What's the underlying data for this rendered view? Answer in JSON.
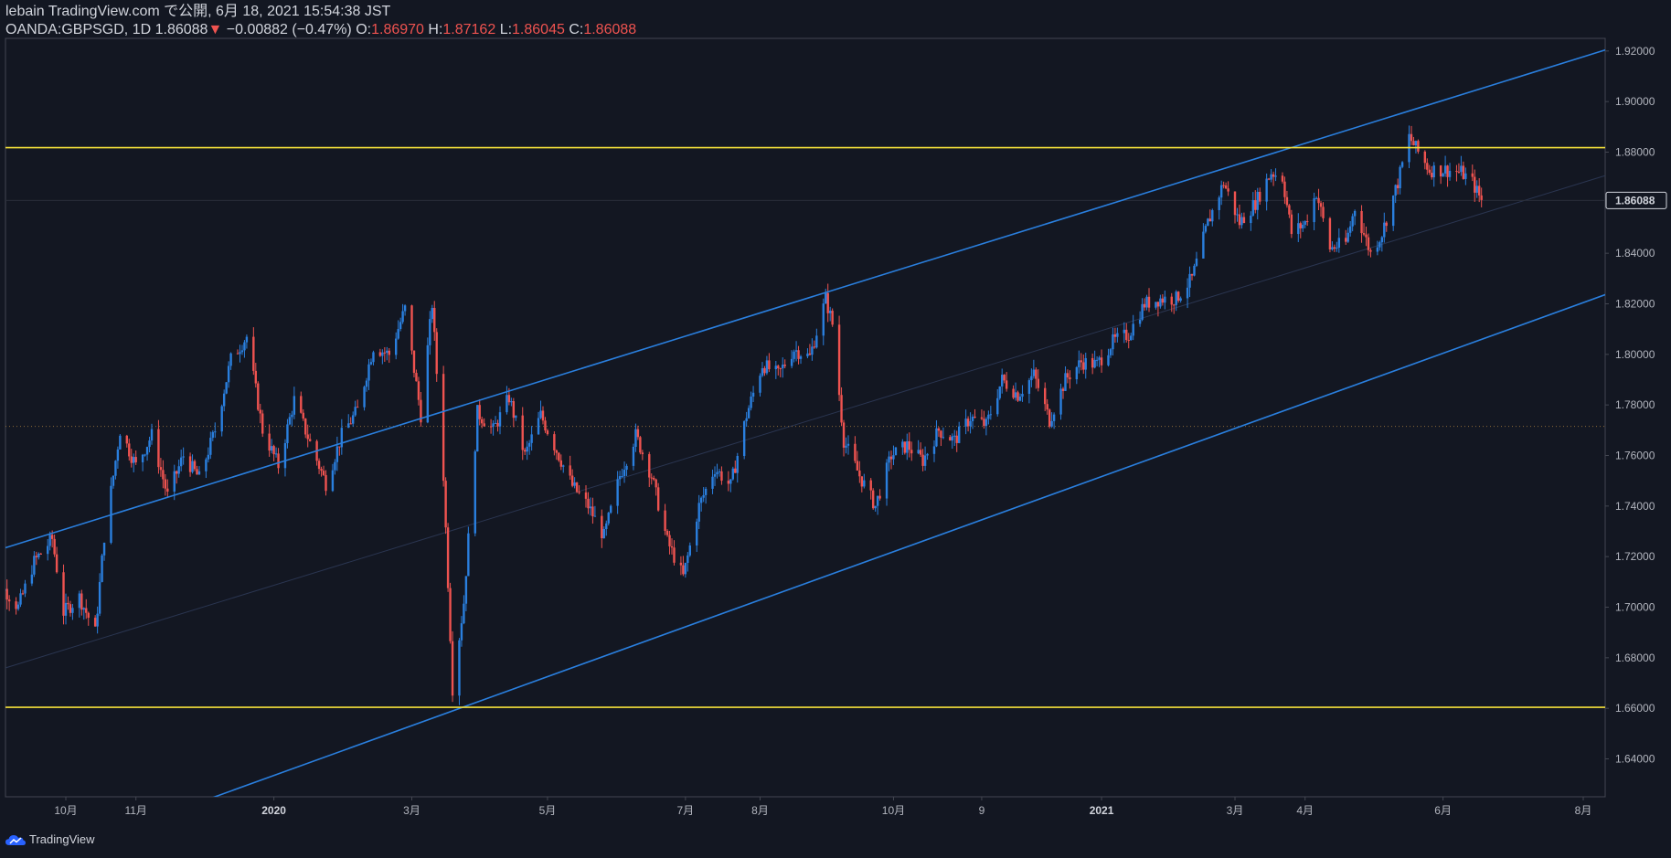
{
  "header": {
    "line1": "lebain TradingView.com で公開, 6月 18, 2021 15:54:38 JST",
    "symbol": "OANDA:GBPSGD, 1D",
    "last": "1.86088",
    "arrow": "▼",
    "change": "−0.00882 (−0.47%)",
    "o_label": "O:",
    "o": "1.86970",
    "h_label": "H:",
    "h": "1.87162",
    "l_label": "L:",
    "l": "1.86045",
    "c_label": "C:",
    "c": "1.86088"
  },
  "footer": {
    "brand": "TradingView"
  },
  "colors": {
    "background": "#131722",
    "up": "#2a7fde",
    "down": "#ef5350",
    "channel": "#2a7fde",
    "horizontal": "#f5e13a",
    "grid": "#2a2e39"
  },
  "chart_data": {
    "type": "candlestick",
    "title": "",
    "xlabel": "",
    "ylabel": "",
    "ylim": [
      1.625,
      1.925
    ],
    "y_ticks": [
      "1.64000",
      "1.66000",
      "1.68000",
      "1.70000",
      "1.72000",
      "1.74000",
      "1.76000",
      "1.78000",
      "1.80000",
      "1.82000",
      "1.84000",
      "1.86000",
      "1.88000",
      "1.90000",
      "1.92000"
    ],
    "last_price_label": "1.86088",
    "x_ticks": [
      {
        "label": "10月",
        "date": "2019-10-01",
        "bold": false
      },
      {
        "label": "11月",
        "date": "2019-11-01",
        "bold": false
      },
      {
        "label": "2020",
        "date": "2020-01-01",
        "bold": true
      },
      {
        "label": "3月",
        "date": "2020-03-02",
        "bold": false
      },
      {
        "label": "5月",
        "date": "2020-05-01",
        "bold": false
      },
      {
        "label": "7月",
        "date": "2020-07-01",
        "bold": false
      },
      {
        "label": "8月",
        "date": "2020-08-03",
        "bold": false
      },
      {
        "label": "10月",
        "date": "2020-10-01",
        "bold": false
      },
      {
        "label": "9",
        "date": "2020-11-09",
        "bold": false
      },
      {
        "label": "2021",
        "date": "2021-01-01",
        "bold": true
      },
      {
        "label": "3月",
        "date": "2021-03-01",
        "bold": false
      },
      {
        "label": "4月",
        "date": "2021-04-01",
        "bold": false
      },
      {
        "label": "6月",
        "date": "2021-06-01",
        "bold": false
      },
      {
        "label": "8月",
        "date": "2021-08-02",
        "bold": false
      }
    ],
    "horizontal_levels": [
      1.8818,
      1.6604
    ],
    "channel_upper": [
      {
        "date": "2019-08-27",
        "price": 1.7212
      },
      {
        "date": "2021-08-12",
        "price": 1.9205
      }
    ],
    "channel_lower": [
      {
        "date": "2019-08-27",
        "price": 1.5924
      },
      {
        "date": "2021-08-12",
        "price": 1.8237
      }
    ],
    "channel_mid": [
      {
        "date": "2019-08-27",
        "price": 1.6737
      },
      {
        "date": "2021-08-12",
        "price": 1.8708
      }
    ],
    "dotted_level": 1.7715,
    "price_path": [
      {
        "date": "2019-08-27",
        "price": 1.695
      },
      {
        "date": "2019-09-03",
        "price": 1.708
      },
      {
        "date": "2019-09-10",
        "price": 1.7
      },
      {
        "date": "2019-09-17",
        "price": 1.718
      },
      {
        "date": "2019-09-25",
        "price": 1.727
      },
      {
        "date": "2019-09-30",
        "price": 1.698
      },
      {
        "date": "2019-10-07",
        "price": 1.704
      },
      {
        "date": "2019-10-14",
        "price": 1.69
      },
      {
        "date": "2019-10-18",
        "price": 1.728
      },
      {
        "date": "2019-10-25",
        "price": 1.77
      },
      {
        "date": "2019-11-01",
        "price": 1.756
      },
      {
        "date": "2019-11-08",
        "price": 1.768
      },
      {
        "date": "2019-11-15",
        "price": 1.744
      },
      {
        "date": "2019-11-22",
        "price": 1.76
      },
      {
        "date": "2019-11-29",
        "price": 1.751
      },
      {
        "date": "2019-12-06",
        "price": 1.77
      },
      {
        "date": "2019-12-13",
        "price": 1.798
      },
      {
        "date": "2019-12-20",
        "price": 1.807
      },
      {
        "date": "2019-12-27",
        "price": 1.77
      },
      {
        "date": "2020-01-03",
        "price": 1.756
      },
      {
        "date": "2020-01-10",
        "price": 1.782
      },
      {
        "date": "2020-01-17",
        "price": 1.765
      },
      {
        "date": "2020-01-24",
        "price": 1.749
      },
      {
        "date": "2020-01-31",
        "price": 1.768
      },
      {
        "date": "2020-02-07",
        "price": 1.778
      },
      {
        "date": "2020-02-14",
        "price": 1.803
      },
      {
        "date": "2020-02-21",
        "price": 1.8
      },
      {
        "date": "2020-02-28",
        "price": 1.818
      },
      {
        "date": "2020-03-06",
        "price": 1.776
      },
      {
        "date": "2020-03-11",
        "price": 1.82
      },
      {
        "date": "2020-03-16",
        "price": 1.752
      },
      {
        "date": "2020-03-20",
        "price": 1.668
      },
      {
        "date": "2020-03-25",
        "price": 1.702
      },
      {
        "date": "2020-03-31",
        "price": 1.777
      },
      {
        "date": "2020-04-07",
        "price": 1.77
      },
      {
        "date": "2020-04-14",
        "price": 1.783
      },
      {
        "date": "2020-04-21",
        "price": 1.76
      },
      {
        "date": "2020-04-28",
        "price": 1.776
      },
      {
        "date": "2020-05-05",
        "price": 1.762
      },
      {
        "date": "2020-05-12",
        "price": 1.748
      },
      {
        "date": "2020-05-19",
        "price": 1.74
      },
      {
        "date": "2020-05-26",
        "price": 1.728
      },
      {
        "date": "2020-06-02",
        "price": 1.752
      },
      {
        "date": "2020-06-09",
        "price": 1.768
      },
      {
        "date": "2020-06-16",
        "price": 1.752
      },
      {
        "date": "2020-06-23",
        "price": 1.726
      },
      {
        "date": "2020-06-30",
        "price": 1.712
      },
      {
        "date": "2020-07-07",
        "price": 1.74
      },
      {
        "date": "2020-07-14",
        "price": 1.755
      },
      {
        "date": "2020-07-21",
        "price": 1.748
      },
      {
        "date": "2020-07-28",
        "price": 1.776
      },
      {
        "date": "2020-08-04",
        "price": 1.796
      },
      {
        "date": "2020-08-11",
        "price": 1.792
      },
      {
        "date": "2020-08-18",
        "price": 1.802
      },
      {
        "date": "2020-08-25",
        "price": 1.799
      },
      {
        "date": "2020-09-01",
        "price": 1.822
      },
      {
        "date": "2020-09-04",
        "price": 1.812
      },
      {
        "date": "2020-09-09",
        "price": 1.766
      },
      {
        "date": "2020-09-16",
        "price": 1.752
      },
      {
        "date": "2020-09-23",
        "price": 1.74
      },
      {
        "date": "2020-09-30",
        "price": 1.76
      },
      {
        "date": "2020-10-07",
        "price": 1.764
      },
      {
        "date": "2020-10-14",
        "price": 1.758
      },
      {
        "date": "2020-10-21",
        "price": 1.77
      },
      {
        "date": "2020-10-28",
        "price": 1.766
      },
      {
        "date": "2020-11-04",
        "price": 1.775
      },
      {
        "date": "2020-11-11",
        "price": 1.772
      },
      {
        "date": "2020-11-18",
        "price": 1.79
      },
      {
        "date": "2020-11-25",
        "price": 1.784
      },
      {
        "date": "2020-12-02",
        "price": 1.792
      },
      {
        "date": "2020-12-09",
        "price": 1.774
      },
      {
        "date": "2020-12-16",
        "price": 1.79
      },
      {
        "date": "2020-12-23",
        "price": 1.797
      },
      {
        "date": "2020-12-30",
        "price": 1.796
      },
      {
        "date": "2021-01-06",
        "price": 1.805
      },
      {
        "date": "2021-01-13",
        "price": 1.808
      },
      {
        "date": "2021-01-20",
        "price": 1.82
      },
      {
        "date": "2021-01-27",
        "price": 1.822
      },
      {
        "date": "2021-02-03",
        "price": 1.822
      },
      {
        "date": "2021-02-10",
        "price": 1.83
      },
      {
        "date": "2021-02-17",
        "price": 1.852
      },
      {
        "date": "2021-02-24",
        "price": 1.868
      },
      {
        "date": "2021-03-03",
        "price": 1.852
      },
      {
        "date": "2021-03-10",
        "price": 1.86
      },
      {
        "date": "2021-03-17",
        "price": 1.872
      },
      {
        "date": "2021-03-22",
        "price": 1.87
      },
      {
        "date": "2021-03-26",
        "price": 1.848
      },
      {
        "date": "2021-04-01",
        "price": 1.852
      },
      {
        "date": "2021-04-06",
        "price": 1.864
      },
      {
        "date": "2021-04-12",
        "price": 1.842
      },
      {
        "date": "2021-04-19",
        "price": 1.844
      },
      {
        "date": "2021-04-23",
        "price": 1.858
      },
      {
        "date": "2021-04-30",
        "price": 1.84
      },
      {
        "date": "2021-05-05",
        "price": 1.848
      },
      {
        "date": "2021-05-12",
        "price": 1.868
      },
      {
        "date": "2021-05-17",
        "price": 1.886
      },
      {
        "date": "2021-05-21",
        "price": 1.88
      },
      {
        "date": "2021-05-26",
        "price": 1.873
      },
      {
        "date": "2021-06-02",
        "price": 1.873
      },
      {
        "date": "2021-06-09",
        "price": 1.872
      },
      {
        "date": "2021-06-14",
        "price": 1.868
      },
      {
        "date": "2021-06-18",
        "price": 1.8609
      }
    ]
  }
}
